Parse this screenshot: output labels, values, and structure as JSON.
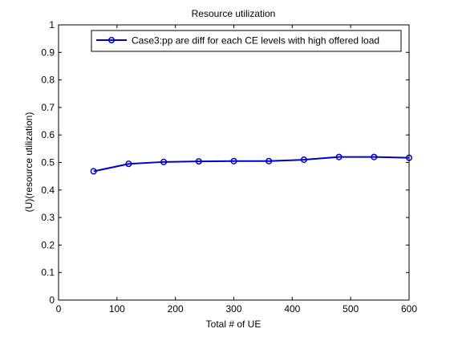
{
  "chart_data": {
    "type": "line",
    "title": "Resource utilization",
    "xlabel": "Total # of UE",
    "ylabel": "(U)(resource utilization)",
    "xlim": [
      0,
      600
    ],
    "ylim": [
      0,
      1
    ],
    "xticks": [
      0,
      100,
      200,
      300,
      400,
      500,
      600
    ],
    "yticks": [
      0,
      0.1,
      0.2,
      0.3,
      0.4,
      0.5,
      0.6,
      0.7,
      0.8,
      0.9,
      1
    ],
    "grid": false,
    "legend_position": "top-right",
    "series": [
      {
        "name": "Case3:pp are diff for each CE levels with high offered load",
        "color": "#0000cc",
        "marker": "circle",
        "x": [
          60,
          120,
          180,
          240,
          300,
          360,
          420,
          480,
          540,
          600
        ],
        "y": [
          0.468,
          0.495,
          0.502,
          0.504,
          0.505,
          0.505,
          0.51,
          0.52,
          0.52,
          0.517
        ]
      }
    ]
  }
}
